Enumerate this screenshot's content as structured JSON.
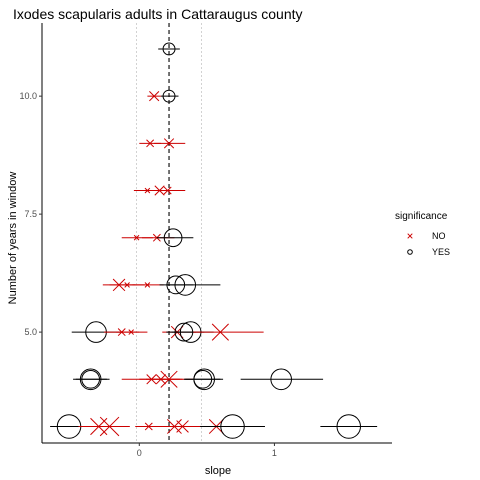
{
  "chart_data": {
    "type": "scatter",
    "title": "Ixodes scapularis adults in Cattaraugus county",
    "xlabel": "slope",
    "ylabel": "Number of years in window",
    "xlim": [
      -0.72,
      1.87
    ],
    "ylim": [
      2.65,
      11.55
    ],
    "x_ticks": [
      0,
      1
    ],
    "x_tick_labels": [
      "0",
      "1"
    ],
    "y_ticks": [
      5.0,
      7.5,
      10.0
    ],
    "y_tick_labels": [
      "5.0",
      "7.5",
      "10.0"
    ],
    "grid": false,
    "vlines": [
      {
        "x": -0.02,
        "style": "dotted"
      },
      {
        "x": 0.22,
        "style": "dashed"
      },
      {
        "x": 0.46,
        "style": "dotted"
      }
    ],
    "legend": {
      "title": "significance",
      "position": "right",
      "entries": [
        {
          "label": "NO",
          "marker": "x",
          "color": "#cc0000"
        },
        {
          "label": "YES",
          "marker": "circle",
          "color": "#000000"
        }
      ]
    },
    "points": [
      {
        "y": 11,
        "x": 0.22,
        "lo": 0.14,
        "hi": 0.3,
        "sig": "YES",
        "size": 3
      },
      {
        "y": 10,
        "x": 0.11,
        "lo": 0.06,
        "hi": 0.16,
        "sig": "NO",
        "size": 3
      },
      {
        "y": 10,
        "x": 0.22,
        "lo": 0.16,
        "hi": 0.29,
        "sig": "YES",
        "size": 3
      },
      {
        "y": 9,
        "x": 0.08,
        "lo": 0.0,
        "hi": 0.16,
        "sig": "NO",
        "size": 2
      },
      {
        "y": 9,
        "x": 0.22,
        "lo": 0.11,
        "hi": 0.34,
        "sig": "NO",
        "size": 3
      },
      {
        "y": 8,
        "x": 0.06,
        "lo": -0.04,
        "hi": 0.16,
        "sig": "NO",
        "size": 1
      },
      {
        "y": 8,
        "x": 0.15,
        "lo": 0.04,
        "hi": 0.27,
        "sig": "NO",
        "size": 3
      },
      {
        "y": 8,
        "x": 0.21,
        "lo": 0.1,
        "hi": 0.34,
        "sig": "NO",
        "size": 2
      },
      {
        "y": 7,
        "x": -0.02,
        "lo": -0.13,
        "hi": 0.1,
        "sig": "NO",
        "size": 1
      },
      {
        "y": 7,
        "x": 0.13,
        "lo": 0.02,
        "hi": 0.26,
        "sig": "NO",
        "size": 2
      },
      {
        "y": 7,
        "x": 0.25,
        "lo": 0.13,
        "hi": 0.4,
        "sig": "YES",
        "size": 5
      },
      {
        "y": 6,
        "x": -0.15,
        "lo": -0.27,
        "hi": -0.03,
        "sig": "NO",
        "size": 4
      },
      {
        "y": 6,
        "x": -0.09,
        "lo": -0.22,
        "hi": 0.04,
        "sig": "NO",
        "size": 1
      },
      {
        "y": 6,
        "x": 0.06,
        "lo": -0.05,
        "hi": 0.18,
        "sig": "NO",
        "size": 1
      },
      {
        "y": 6,
        "x": 0.27,
        "lo": 0.15,
        "hi": 0.4,
        "sig": "YES",
        "size": 5
      },
      {
        "y": 6,
        "x": 0.34,
        "lo": 0.2,
        "hi": 0.6,
        "sig": "YES",
        "size": 6
      },
      {
        "y": 5,
        "x": -0.32,
        "lo": -0.5,
        "hi": -0.14,
        "sig": "YES",
        "size": 6
      },
      {
        "y": 5,
        "x": -0.13,
        "lo": -0.26,
        "hi": 0.0,
        "sig": "NO",
        "size": 2
      },
      {
        "y": 5,
        "x": -0.06,
        "lo": -0.17,
        "hi": 0.06,
        "sig": "NO",
        "size": 1
      },
      {
        "y": 5,
        "x": 0.28,
        "lo": 0.17,
        "hi": 0.42,
        "sig": "NO",
        "size": 4
      },
      {
        "y": 5,
        "x": 0.33,
        "lo": 0.2,
        "hi": 0.48,
        "sig": "YES",
        "size": 5
      },
      {
        "y": 5,
        "x": 0.38,
        "lo": 0.24,
        "hi": 0.55,
        "sig": "YES",
        "size": 6
      },
      {
        "y": 5,
        "x": 0.6,
        "lo": 0.4,
        "hi": 0.92,
        "sig": "NO",
        "size": 6
      },
      {
        "y": 4,
        "x": -0.36,
        "lo": -0.47,
        "hi": -0.24,
        "sig": "YES",
        "size": 5
      },
      {
        "y": 4,
        "x": -0.36,
        "lo": -0.49,
        "hi": -0.22,
        "sig": "YES",
        "size": 6
      },
      {
        "y": 4,
        "x": 0.09,
        "lo": -0.13,
        "hi": 0.3,
        "sig": "NO",
        "size": 3
      },
      {
        "y": 4,
        "x": 0.16,
        "lo": 0.0,
        "hi": 0.32,
        "sig": "NO",
        "size": 3
      },
      {
        "y": 4,
        "x": 0.22,
        "lo": 0.05,
        "hi": 0.4,
        "sig": "NO",
        "size": 6
      },
      {
        "y": 4,
        "x": 0.47,
        "lo": 0.33,
        "hi": 0.6,
        "sig": "YES",
        "size": 5
      },
      {
        "y": 4,
        "x": 0.48,
        "lo": 0.34,
        "hi": 0.62,
        "sig": "YES",
        "size": 6
      },
      {
        "y": 4,
        "x": 1.05,
        "lo": 0.75,
        "hi": 1.36,
        "sig": "YES",
        "size": 6
      },
      {
        "y": 3,
        "x": -0.52,
        "lo": -0.66,
        "hi": -0.38,
        "sig": "YES",
        "size": 7
      },
      {
        "y": 3,
        "x": -0.3,
        "lo": -0.45,
        "hi": -0.15,
        "sig": "NO",
        "size": 6
      },
      {
        "y": 3,
        "x": -0.22,
        "lo": -0.38,
        "hi": -0.07,
        "sig": "NO",
        "size": 7
      },
      {
        "y": 3,
        "x": 0.07,
        "lo": -0.03,
        "hi": 0.17,
        "sig": "NO",
        "size": 2
      },
      {
        "y": 3,
        "x": 0.26,
        "lo": 0.09,
        "hi": 0.44,
        "sig": "NO",
        "size": 5
      },
      {
        "y": 3,
        "x": 0.32,
        "lo": 0.15,
        "hi": 0.5,
        "sig": "NO",
        "size": 4
      },
      {
        "y": 3,
        "x": 0.57,
        "lo": 0.4,
        "hi": 0.75,
        "sig": "NO",
        "size": 5
      },
      {
        "y": 3,
        "x": 0.69,
        "lo": 0.45,
        "hi": 0.93,
        "sig": "YES",
        "size": 7
      },
      {
        "y": 3,
        "x": 1.55,
        "lo": 1.34,
        "hi": 1.76,
        "sig": "YES",
        "size": 7
      }
    ]
  }
}
